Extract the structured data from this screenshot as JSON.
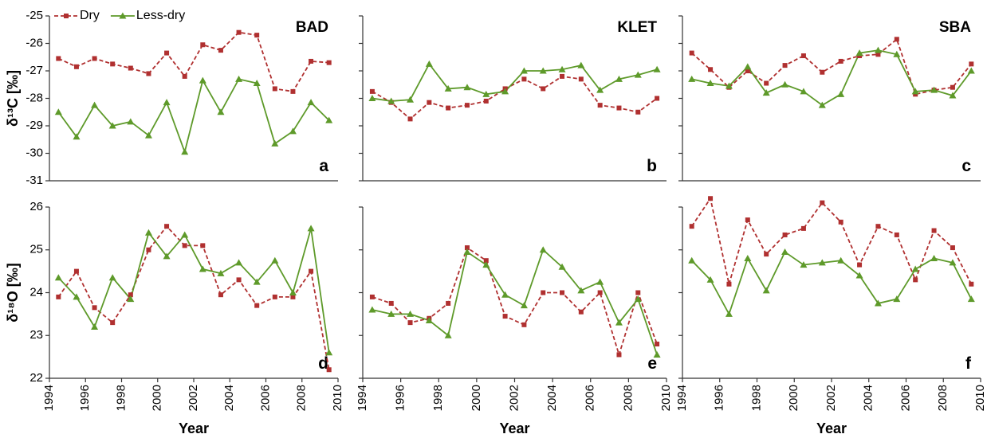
{
  "chart_data": [
    {
      "type": "line",
      "title": "BAD",
      "panel_label": "a",
      "ylabel": "δ¹³C [‰]",
      "legend": "upper left",
      "x": [
        1994.5,
        1995.5,
        1996.5,
        1997.5,
        1998.5,
        1999.5,
        2000.5,
        2001.5,
        2002.5,
        2003.5,
        2004.5,
        2005.5,
        2006.5,
        2007.5,
        2008.5,
        2009.5
      ],
      "xlim": [
        1994,
        2010
      ],
      "ylim": [
        -31,
        -25
      ],
      "yticks": [
        -31,
        -30,
        -29,
        -28,
        -27,
        -26,
        -25
      ],
      "show_ytick_labels": true,
      "series": [
        {
          "name": "Dry",
          "color": "#b03030",
          "linestyle": "dashed",
          "marker": "square",
          "values": [
            -26.55,
            -26.85,
            -26.55,
            -26.75,
            -26.9,
            -27.1,
            -26.35,
            -27.2,
            -26.05,
            -26.25,
            -25.6,
            -25.7,
            -27.65,
            -27.75,
            -26.65,
            -26.7
          ]
        },
        {
          "name": "Less-dry",
          "color": "#5e9a2a",
          "linestyle": "solid",
          "marker": "triangle",
          "values": [
            -28.5,
            -29.4,
            -28.25,
            -29.0,
            -28.85,
            -29.35,
            -28.15,
            -29.95,
            -27.35,
            -28.5,
            -27.3,
            -27.45,
            -29.65,
            -29.2,
            -28.15,
            -28.8
          ]
        }
      ]
    },
    {
      "type": "line",
      "title": "KLET",
      "panel_label": "b",
      "x": [
        1994.5,
        1995.5,
        1996.5,
        1997.5,
        1998.5,
        1999.5,
        2000.5,
        2001.5,
        2002.5,
        2003.5,
        2004.5,
        2005.5,
        2006.5,
        2007.5,
        2008.5,
        2009.5
      ],
      "xlim": [
        1994,
        2010
      ],
      "ylim": [
        -31,
        -25
      ],
      "yticks": [
        -31,
        -30,
        -29,
        -28,
        -27,
        -26,
        -25
      ],
      "show_ytick_labels": false,
      "series": [
        {
          "color": "#b03030",
          "linestyle": "dashed",
          "marker": "square",
          "values": [
            -27.75,
            -28.15,
            -28.75,
            -28.15,
            -28.35,
            -28.25,
            -28.1,
            -27.65,
            -27.3,
            -27.65,
            -27.2,
            -27.3,
            -28.25,
            -28.35,
            -28.5,
            -28.0
          ]
        },
        {
          "color": "#5e9a2a",
          "linestyle": "solid",
          "marker": "triangle",
          "values": [
            -28.0,
            -28.1,
            -28.05,
            -26.75,
            -27.65,
            -27.6,
            -27.85,
            -27.75,
            -27.0,
            -27.0,
            -26.95,
            -26.8,
            -27.7,
            -27.3,
            -27.15,
            -26.95
          ]
        }
      ]
    },
    {
      "type": "line",
      "title": "SBA",
      "panel_label": "c",
      "x": [
        1994.5,
        1995.5,
        1996.5,
        1997.5,
        1998.5,
        1999.5,
        2000.5,
        2001.5,
        2002.5,
        2003.5,
        2004.5,
        2005.5,
        2006.5,
        2007.5,
        2008.5,
        2009.5
      ],
      "xlim": [
        1994,
        2010
      ],
      "ylim": [
        -31,
        -25
      ],
      "yticks": [
        -31,
        -30,
        -29,
        -28,
        -27,
        -26,
        -25
      ],
      "show_ytick_labels": false,
      "series": [
        {
          "color": "#b03030",
          "linestyle": "dashed",
          "marker": "square",
          "values": [
            -26.35,
            -26.95,
            -27.6,
            -27.0,
            -27.45,
            -26.8,
            -26.45,
            -27.05,
            -26.65,
            -26.45,
            -26.4,
            -25.85,
            -27.85,
            -27.7,
            -27.6,
            -26.75
          ]
        },
        {
          "color": "#5e9a2a",
          "linestyle": "solid",
          "marker": "triangle",
          "values": [
            -27.3,
            -27.45,
            -27.55,
            -26.85,
            -27.8,
            -27.5,
            -27.75,
            -28.25,
            -27.85,
            -26.35,
            -26.25,
            -26.4,
            -27.75,
            -27.7,
            -27.9,
            -27.0
          ]
        }
      ]
    },
    {
      "type": "line",
      "panel_label": "d",
      "ylabel": "δ¹⁸O [‰]",
      "xlabel": "Year",
      "x": [
        1994.5,
        1995.5,
        1996.5,
        1997.5,
        1998.5,
        1999.5,
        2000.5,
        2001.5,
        2002.5,
        2003.5,
        2004.5,
        2005.5,
        2006.5,
        2007.5,
        2008.5,
        2009.5
      ],
      "xlim": [
        1994,
        2010
      ],
      "xticks": [
        1994,
        1996,
        1998,
        2000,
        2002,
        2004,
        2006,
        2008,
        2010
      ],
      "ylim": [
        22,
        26
      ],
      "yticks": [
        22,
        23,
        24,
        25,
        26
      ],
      "show_ytick_labels": true,
      "series": [
        {
          "color": "#b03030",
          "linestyle": "dashed",
          "marker": "square",
          "values": [
            23.9,
            24.5,
            23.65,
            23.3,
            23.95,
            25.0,
            25.55,
            25.1,
            25.1,
            23.95,
            24.3,
            23.7,
            23.9,
            23.9,
            24.5,
            22.2
          ]
        },
        {
          "color": "#5e9a2a",
          "linestyle": "solid",
          "marker": "triangle",
          "values": [
            24.35,
            23.9,
            23.2,
            24.35,
            23.85,
            25.4,
            24.85,
            25.35,
            24.55,
            24.45,
            24.7,
            24.25,
            24.75,
            24.0,
            25.5,
            22.6
          ]
        }
      ]
    },
    {
      "type": "line",
      "panel_label": "e",
      "xlabel": "Year",
      "x": [
        1994.5,
        1995.5,
        1996.5,
        1997.5,
        1998.5,
        1999.5,
        2000.5,
        2001.5,
        2002.5,
        2003.5,
        2004.5,
        2005.5,
        2006.5,
        2007.5,
        2008.5,
        2009.5
      ],
      "xlim": [
        1994,
        2010
      ],
      "xticks": [
        1994,
        1996,
        1998,
        2000,
        2002,
        2004,
        2006,
        2008,
        2010
      ],
      "ylim": [
        22,
        26
      ],
      "yticks": [
        22,
        23,
        24,
        25,
        26
      ],
      "show_ytick_labels": false,
      "series": [
        {
          "color": "#b03030",
          "linestyle": "dashed",
          "marker": "square",
          "values": [
            23.9,
            23.75,
            23.3,
            23.4,
            23.75,
            25.05,
            24.75,
            23.45,
            23.25,
            24.0,
            24.0,
            23.55,
            24.0,
            22.55,
            24.0,
            22.8
          ]
        },
        {
          "color": "#5e9a2a",
          "linestyle": "solid",
          "marker": "triangle",
          "values": [
            23.6,
            23.5,
            23.5,
            23.35,
            23.0,
            24.95,
            24.65,
            23.95,
            23.7,
            25.0,
            24.6,
            24.05,
            24.25,
            23.3,
            23.85,
            22.55
          ]
        }
      ]
    },
    {
      "type": "line",
      "panel_label": "f",
      "xlabel": "Year",
      "x": [
        1994.5,
        1995.5,
        1996.5,
        1997.5,
        1998.5,
        1999.5,
        2000.5,
        2001.5,
        2002.5,
        2003.5,
        2004.5,
        2005.5,
        2006.5,
        2007.5,
        2008.5,
        2009.5
      ],
      "xlim": [
        1994,
        2010
      ],
      "xticks": [
        1994,
        1996,
        1998,
        2000,
        2002,
        2004,
        2006,
        2008,
        2010
      ],
      "ylim": [
        22,
        26
      ],
      "yticks": [
        22,
        23,
        24,
        25,
        26
      ],
      "show_ytick_labels": false,
      "series": [
        {
          "color": "#b03030",
          "linestyle": "dashed",
          "marker": "square",
          "values": [
            25.55,
            26.2,
            24.2,
            25.7,
            24.9,
            25.35,
            25.5,
            26.1,
            25.65,
            24.65,
            25.55,
            25.35,
            24.3,
            25.45,
            25.05,
            24.2
          ]
        },
        {
          "color": "#5e9a2a",
          "linestyle": "solid",
          "marker": "triangle",
          "values": [
            24.75,
            24.3,
            23.5,
            24.8,
            24.05,
            24.95,
            24.65,
            24.7,
            24.75,
            24.4,
            23.75,
            23.85,
            24.55,
            24.8,
            24.7,
            23.85
          ]
        }
      ]
    }
  ]
}
